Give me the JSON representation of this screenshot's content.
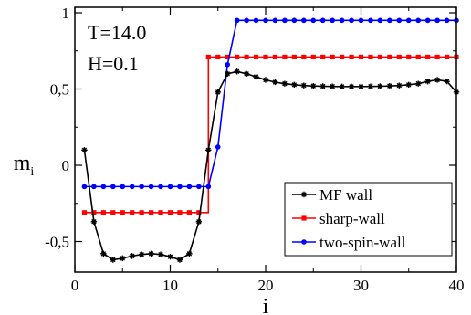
{
  "chart_data": {
    "type": "line",
    "title": "",
    "xlabel": "i",
    "ylabel_main": "m",
    "ylabel_sub": "i",
    "xlim": [
      0,
      40
    ],
    "ylim": [
      -0.7,
      1.0
    ],
    "x_ticks": [
      {
        "value": 0,
        "label": "0"
      },
      {
        "value": 10,
        "label": "10"
      },
      {
        "value": 20,
        "label": "20"
      },
      {
        "value": 30,
        "label": "30"
      },
      {
        "value": 40,
        "label": "40"
      }
    ],
    "y_ticks": [
      {
        "value": 1,
        "label": "1"
      },
      {
        "value": 0.5,
        "label": "0,5"
      },
      {
        "value": 0,
        "label": "0"
      },
      {
        "value": -0.5,
        "label": "-0,5"
      }
    ],
    "grid": false,
    "annotations": [
      "T=14.0",
      "H=0.1"
    ],
    "legend_position": "bottom-right",
    "series": [
      {
        "name": "MF wall",
        "color": "#000000",
        "marker": "star",
        "x": [
          1,
          2,
          3,
          4,
          5,
          6,
          7,
          8,
          9,
          10,
          11,
          12,
          13,
          14,
          15,
          16,
          17,
          18,
          19,
          20,
          21,
          22,
          23,
          24,
          25,
          26,
          27,
          28,
          29,
          30,
          31,
          32,
          33,
          34,
          35,
          36,
          37,
          38,
          39,
          40
        ],
        "y": [
          0.1,
          -0.37,
          -0.58,
          -0.62,
          -0.61,
          -0.595,
          -0.585,
          -0.58,
          -0.585,
          -0.6,
          -0.62,
          -0.58,
          -0.37,
          0.1,
          0.48,
          0.6,
          0.615,
          0.6,
          0.58,
          0.56,
          0.545,
          0.535,
          0.528,
          0.523,
          0.52,
          0.518,
          0.517,
          0.516,
          0.516,
          0.516,
          0.517,
          0.518,
          0.52,
          0.523,
          0.528,
          0.535,
          0.55,
          0.56,
          0.55,
          0.48
        ]
      },
      {
        "name": "sharp-wall",
        "color": "#ff0000",
        "marker": "square",
        "x": [
          1,
          2,
          3,
          4,
          5,
          6,
          7,
          8,
          9,
          10,
          11,
          12,
          13,
          14,
          15,
          16,
          17,
          18,
          19,
          20,
          21,
          22,
          23,
          24,
          25,
          26,
          27,
          28,
          29,
          30,
          31,
          32,
          33,
          34,
          35,
          36,
          37,
          38,
          39,
          40
        ],
        "y": [
          -0.31,
          -0.31,
          -0.31,
          -0.31,
          -0.31,
          -0.31,
          -0.31,
          -0.31,
          -0.31,
          -0.31,
          -0.31,
          -0.31,
          -0.31,
          0.71,
          0.71,
          0.71,
          0.71,
          0.71,
          0.71,
          0.71,
          0.71,
          0.71,
          0.71,
          0.71,
          0.71,
          0.71,
          0.71,
          0.71,
          0.71,
          0.71,
          0.71,
          0.71,
          0.71,
          0.71,
          0.71,
          0.71,
          0.71,
          0.71,
          0.71,
          0.71
        ]
      },
      {
        "name": "two-spin-wall",
        "color": "#0000ff",
        "marker": "circle",
        "x": [
          1,
          2,
          3,
          4,
          5,
          6,
          7,
          8,
          9,
          10,
          11,
          12,
          13,
          14,
          15,
          16,
          17,
          18,
          19,
          20,
          21,
          22,
          23,
          24,
          25,
          26,
          27,
          28,
          29,
          30,
          31,
          32,
          33,
          34,
          35,
          36,
          37,
          38,
          39,
          40
        ],
        "y": [
          -0.14,
          -0.14,
          -0.14,
          -0.14,
          -0.14,
          -0.14,
          -0.14,
          -0.14,
          -0.14,
          -0.14,
          -0.14,
          -0.14,
          -0.14,
          -0.14,
          0.12,
          0.66,
          0.95,
          0.95,
          0.95,
          0.95,
          0.95,
          0.95,
          0.95,
          0.95,
          0.95,
          0.95,
          0.95,
          0.95,
          0.95,
          0.95,
          0.95,
          0.95,
          0.95,
          0.95,
          0.95,
          0.95,
          0.95,
          0.95,
          0.95,
          0.95
        ]
      }
    ]
  }
}
